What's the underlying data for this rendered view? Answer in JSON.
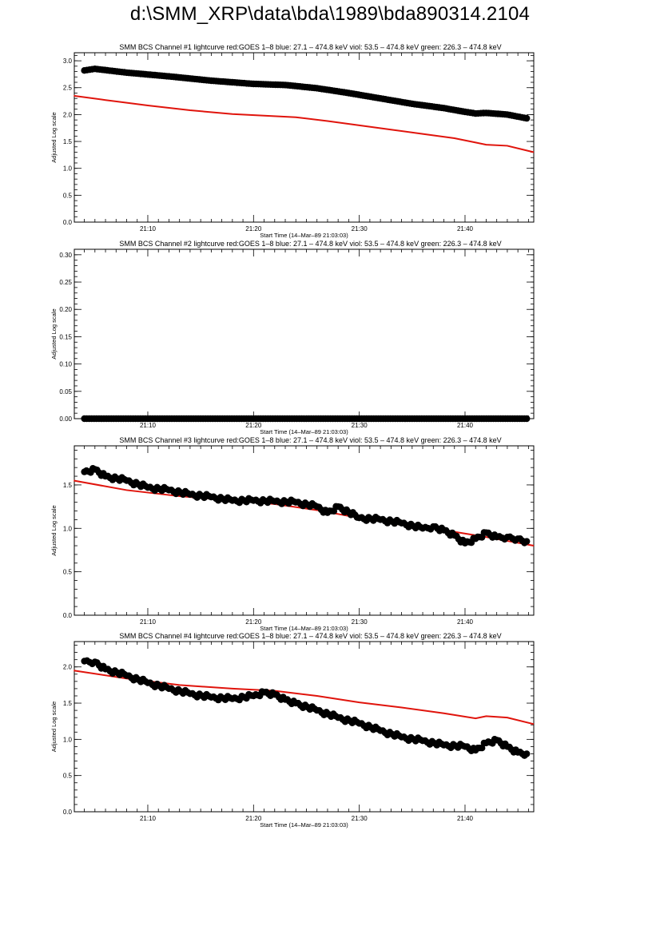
{
  "page_title": "d:\\SMM_XRP\\data\\bda\\1989\\bda890314.2104",
  "colors": {
    "goes": "#e0140c",
    "bcs": "#000000"
  },
  "chart_data": [
    {
      "type": "scatter",
      "title": "SMM BCS Channel #1 lightcurve  red:GOES 1–8  blue: 27.1 – 474.8 keV  viol: 53.5 – 474.8 keV  green: 226.3 – 474.8 keV",
      "xlabel": "Start Time (14–Mar–89 21:03:03)",
      "ylabel": "Adjusted Log scale",
      "xlim": [
        "21:03:03",
        "21:46:30"
      ],
      "ylim": [
        0,
        3.15
      ],
      "xticks": [
        "21:10",
        "21:20",
        "21:30",
        "21:40"
      ],
      "yticks": [
        "0.0",
        "0.5",
        "1.0",
        "1.5",
        "2.0",
        "2.5",
        "3.0"
      ],
      "series": [
        {
          "color": "#e0140c",
          "style": "line",
          "x": [
            "21:03",
            "21:06",
            "21:10",
            "21:14",
            "21:18",
            "21:21",
            "21:24",
            "21:27",
            "21:30",
            "21:33",
            "21:36",
            "21:39",
            "21:41",
            "21:42",
            "21:44",
            "21:46:30"
          ],
          "y": [
            2.35,
            2.27,
            2.17,
            2.08,
            2.01,
            1.98,
            1.95,
            1.88,
            1.8,
            1.72,
            1.64,
            1.56,
            1.48,
            1.44,
            1.42,
            1.3
          ]
        },
        {
          "color": "#000000",
          "style": "scatter",
          "x": [
            "21:04",
            "21:05",
            "21:08",
            "21:12",
            "21:16",
            "21:20",
            "21:23",
            "21:26",
            "21:29",
            "21:32",
            "21:35",
            "21:38",
            "21:40",
            "21:41",
            "21:42",
            "21:44",
            "21:45:50"
          ],
          "y": [
            2.82,
            2.85,
            2.78,
            2.71,
            2.63,
            2.57,
            2.55,
            2.49,
            2.4,
            2.3,
            2.2,
            2.12,
            2.05,
            2.02,
            2.03,
            2.0,
            1.93
          ]
        }
      ]
    },
    {
      "type": "scatter",
      "title": "SMM BCS Channel #2 lightcurve  red:GOES 1–8  blue: 27.1 – 474.8 keV  viol: 53.5 – 474.8 keV  green: 226.3 – 474.8 keV",
      "xlabel": "Start Time (14–Mar–89 21:03:03)",
      "ylabel": "Adjusted Log scale",
      "xlim": [
        "21:03:03",
        "21:46:30"
      ],
      "ylim": [
        0,
        0.31
      ],
      "xticks": [
        "21:10",
        "21:20",
        "21:30",
        "21:40"
      ],
      "yticks": [
        "0.00",
        "0.05",
        "0.10",
        "0.15",
        "0.20",
        "0.25",
        "0.30"
      ],
      "series": [
        {
          "color": "#000000",
          "style": "scatter",
          "x": [
            "21:04",
            "21:10",
            "21:20",
            "21:30",
            "21:40",
            "21:45:50"
          ],
          "y": [
            0.0,
            0.0,
            0.0,
            0.0,
            0.0,
            0.0
          ]
        }
      ]
    },
    {
      "type": "scatter",
      "title": "SMM BCS Channel #3 lightcurve  red:GOES 1–8  blue: 27.1 – 474.8 keV  viol: 53.5 – 474.8 keV  green: 226.3 – 474.8 keV",
      "xlabel": "Start Time (14–Mar–89 21:03:03)",
      "ylabel": "Adjusted Log scale",
      "xlim": [
        "21:03:03",
        "21:46:30"
      ],
      "ylim": [
        0,
        1.95
      ],
      "xticks": [
        "21:10",
        "21:20",
        "21:30",
        "21:40"
      ],
      "yticks": [
        "0.0",
        "0.5",
        "1.0",
        "1.5"
      ],
      "series": [
        {
          "color": "#e0140c",
          "style": "line",
          "x": [
            "21:03",
            "21:08",
            "21:13",
            "21:18",
            "21:22",
            "21:26",
            "21:30",
            "21:34",
            "21:38",
            "21:42",
            "21:46:30"
          ],
          "y": [
            1.55,
            1.44,
            1.37,
            1.32,
            1.28,
            1.21,
            1.12,
            1.04,
            0.98,
            0.9,
            0.8
          ]
        },
        {
          "color": "#000000",
          "style": "scatter",
          "x": [
            "21:04",
            "21:05",
            "21:06",
            "21:08",
            "21:10",
            "21:12",
            "21:14",
            "21:16",
            "21:18",
            "21:20",
            "21:22",
            "21:24",
            "21:26",
            "21:27",
            "21:28",
            "21:30",
            "21:32",
            "21:34",
            "21:36",
            "21:37",
            "21:38",
            "21:39",
            "21:40",
            "21:41",
            "21:42",
            "21:43",
            "21:44",
            "21:45",
            "21:45:50"
          ],
          "y": [
            1.65,
            1.68,
            1.6,
            1.55,
            1.47,
            1.44,
            1.39,
            1.36,
            1.32,
            1.32,
            1.31,
            1.3,
            1.25,
            1.18,
            1.25,
            1.12,
            1.1,
            1.06,
            1.0,
            1.02,
            0.98,
            0.92,
            0.83,
            0.88,
            0.95,
            0.9,
            0.9,
            0.88,
            0.85
          ]
        }
      ]
    },
    {
      "type": "scatter",
      "title": "SMM BCS Channel #4 lightcurve  red:GOES 1–8  blue: 27.1 – 474.8 keV  viol: 53.5 – 474.8 keV  green: 226.3 – 474.8 keV",
      "xlabel": "Start Time (14–Mar–89 21:03:03)",
      "ylabel": "Adjusted Log scale",
      "xlim": [
        "21:03:03",
        "21:46:30"
      ],
      "ylim": [
        0,
        2.35
      ],
      "xticks": [
        "21:10",
        "21:20",
        "21:30",
        "21:40"
      ],
      "yticks": [
        "0.0",
        "0.5",
        "1.0",
        "1.5",
        "2.0"
      ],
      "series": [
        {
          "color": "#e0140c",
          "style": "line",
          "x": [
            "21:03",
            "21:08",
            "21:13",
            "21:18",
            "21:22",
            "21:26",
            "21:30",
            "21:34",
            "21:38",
            "21:41",
            "21:42",
            "21:44",
            "21:46:30"
          ],
          "y": [
            1.95,
            1.84,
            1.75,
            1.7,
            1.67,
            1.6,
            1.51,
            1.44,
            1.36,
            1.29,
            1.32,
            1.3,
            1.21
          ]
        },
        {
          "color": "#000000",
          "style": "scatter",
          "x": [
            "21:04",
            "21:05",
            "21:06",
            "21:08",
            "21:10",
            "21:12",
            "21:14",
            "21:16",
            "21:18",
            "21:20",
            "21:21",
            "21:22",
            "21:23",
            "21:24",
            "21:26",
            "21:28",
            "21:30",
            "21:32",
            "21:34",
            "21:36",
            "21:38",
            "21:40",
            "21:41",
            "21:42",
            "21:43",
            "21:44",
            "21:45",
            "21:45:50"
          ],
          "y": [
            2.08,
            2.07,
            1.97,
            1.88,
            1.78,
            1.7,
            1.63,
            1.58,
            1.56,
            1.6,
            1.65,
            1.62,
            1.55,
            1.5,
            1.4,
            1.3,
            1.22,
            1.12,
            1.03,
            0.98,
            0.92,
            0.9,
            0.85,
            0.95,
            0.99,
            0.9,
            0.82,
            0.8
          ]
        }
      ]
    }
  ]
}
